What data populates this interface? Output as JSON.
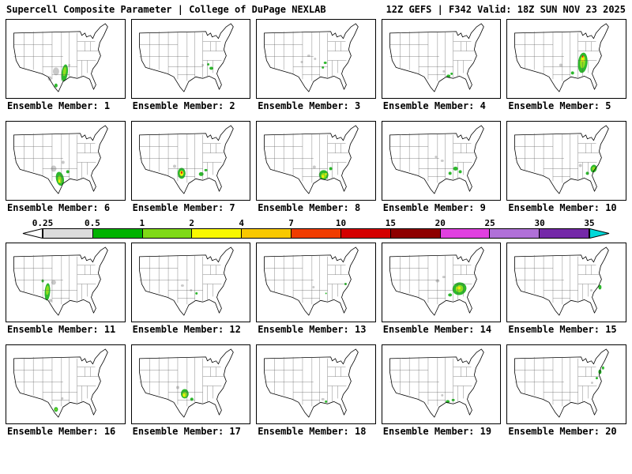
{
  "header": {
    "title_left": "Supercell Composite Parameter | College of DuPage NEXLAB",
    "title_right": "12Z GEFS | F342 Valid: 18Z SUN NOV 23 2025"
  },
  "colorbar": {
    "ticks": [
      "0.25",
      "0.5",
      "1",
      "2",
      "4",
      "7",
      "10",
      "15",
      "20",
      "25",
      "30",
      "35"
    ],
    "segment_colors": [
      "#ffffff",
      "#dcdcdc",
      "#00b300",
      "#7fd916",
      "#f8f800",
      "#f8c800",
      "#f03c00",
      "#d40000",
      "#8e0000",
      "#e040e0",
      "#b070d8",
      "#7428a8",
      "#00d8d8"
    ]
  },
  "map_colors": {
    "gray": "#c9c9c9",
    "green": "#2db82d",
    "green2": "#8ede1f",
    "yellow": "#f2ef0a",
    "red": "#e01414"
  },
  "panels": [
    {
      "label": "Ensemble Member: 1",
      "blobs": [
        [
          63,
          66,
          4,
          5,
          "gray",
          0
        ],
        [
          55,
          75,
          2.5,
          3,
          "gray",
          0
        ],
        [
          80,
          58,
          1.5,
          1.5,
          "gray",
          0
        ],
        [
          74,
          68,
          4,
          11,
          "green",
          8
        ],
        [
          74,
          66,
          2,
          6,
          "green2",
          8
        ],
        [
          63,
          84,
          2,
          2.5,
          "green",
          0
        ]
      ]
    },
    {
      "label": "Ensemble Member: 2",
      "blobs": [
        [
          90,
          58,
          1.5,
          1.5,
          "gray",
          0
        ],
        [
          101,
          62,
          2.5,
          2,
          "green",
          0
        ],
        [
          97,
          57,
          1.5,
          1.5,
          "green",
          0
        ]
      ]
    },
    {
      "label": "Ensemble Member: 3",
      "blobs": [
        [
          66,
          46,
          2,
          1.5,
          "gray",
          0
        ],
        [
          74,
          50,
          1.5,
          1.5,
          "gray",
          0
        ],
        [
          57,
          54,
          1.5,
          1.5,
          "gray",
          0
        ],
        [
          87,
          55,
          2,
          1.5,
          "green",
          0
        ],
        [
          84,
          61,
          1.5,
          1.5,
          "green",
          0
        ]
      ]
    },
    {
      "label": "Ensemble Member: 4",
      "blobs": [
        [
          78,
          66,
          1.5,
          1.5,
          "gray",
          0
        ],
        [
          84,
          72,
          2.5,
          2,
          "green",
          0
        ],
        [
          88,
          69,
          1.5,
          1.5,
          "green",
          0
        ]
      ]
    },
    {
      "label": "Ensemble Member: 5",
      "blobs": [
        [
          68,
          58,
          2,
          2,
          "gray",
          0
        ],
        [
          96,
          55,
          6,
          13,
          "green",
          6
        ],
        [
          96,
          54,
          3.5,
          8,
          "green2",
          6
        ],
        [
          96,
          50,
          2,
          4,
          "yellow",
          6
        ],
        [
          96,
          47,
          0.9,
          1.4,
          "red",
          0
        ],
        [
          83,
          68,
          2,
          2,
          "green",
          0
        ]
      ]
    },
    {
      "label": "Ensemble Member: 6",
      "blobs": [
        [
          60,
          60,
          3.5,
          4,
          "gray",
          0
        ],
        [
          72,
          52,
          2,
          2,
          "gray",
          0
        ],
        [
          68,
          73,
          5,
          9,
          "green",
          -12
        ],
        [
          68,
          74,
          2.5,
          5,
          "green2",
          -12
        ],
        [
          67,
          76,
          1.2,
          2.2,
          "yellow",
          0
        ],
        [
          78,
          64,
          2,
          2,
          "green",
          0
        ]
      ]
    },
    {
      "label": "Ensemble Member: 7",
      "blobs": [
        [
          54,
          57,
          2,
          2,
          "gray",
          0
        ],
        [
          63,
          66,
          5,
          7,
          "green",
          0
        ],
        [
          63,
          66,
          2.5,
          3.5,
          "yellow",
          0
        ],
        [
          63,
          65,
          1,
          1.6,
          "red",
          0
        ],
        [
          88,
          67,
          3,
          2.5,
          "green",
          0
        ],
        [
          94,
          62,
          2,
          1.5,
          "green",
          0
        ]
      ]
    },
    {
      "label": "Ensemble Member: 8",
      "blobs": [
        [
          73,
          58,
          2,
          2,
          "gray",
          0
        ],
        [
          85,
          68,
          6,
          6,
          "green",
          0
        ],
        [
          85,
          69,
          3.5,
          3.5,
          "green2",
          0
        ],
        [
          84,
          70,
          1.5,
          2,
          "yellow",
          0
        ],
        [
          88,
          67,
          1,
          1.5,
          "yellow",
          0
        ],
        [
          94,
          60,
          2,
          2,
          "green",
          0
        ]
      ]
    },
    {
      "label": "Ensemble Member: 9",
      "blobs": [
        [
          76,
          50,
          2,
          1.5,
          "gray",
          0
        ],
        [
          68,
          45,
          1.5,
          1.5,
          "gray",
          0
        ],
        [
          93,
          60,
          3,
          2.5,
          "green",
          0
        ],
        [
          99,
          64,
          2,
          2,
          "green",
          0
        ],
        [
          86,
          66,
          2,
          2,
          "green",
          0
        ]
      ]
    },
    {
      "label": "Ensemble Member: 10",
      "blobs": [
        [
          93,
          56,
          2,
          2,
          "gray",
          0
        ],
        [
          110,
          60,
          4,
          5,
          "green",
          18
        ],
        [
          110,
          60,
          2,
          2.5,
          "green2",
          18
        ],
        [
          102,
          66,
          2,
          2,
          "green",
          0
        ]
      ]
    },
    {
      "label": "Ensemble Member: 11",
      "blobs": [
        [
          60,
          50,
          3,
          3,
          "gray",
          0
        ],
        [
          56,
          73,
          2,
          2,
          "gray",
          0
        ],
        [
          52,
          62,
          3.5,
          11,
          "green",
          4
        ],
        [
          52,
          60,
          2,
          6,
          "green2",
          4
        ],
        [
          46,
          48,
          1.5,
          2,
          "green",
          0
        ]
      ]
    },
    {
      "label": "Ensemble Member: 12",
      "blobs": [
        [
          64,
          54,
          2,
          1.5,
          "gray",
          0
        ],
        [
          75,
          60,
          1.5,
          1.5,
          "gray",
          0
        ],
        [
          82,
          64,
          1.5,
          1.5,
          "green",
          0
        ]
      ]
    },
    {
      "label": "Ensemble Member: 13",
      "blobs": [
        [
          72,
          56,
          1.5,
          1.5,
          "gray",
          0
        ],
        [
          113,
          52,
          1.5,
          1.5,
          "green",
          0
        ],
        [
          88,
          64,
          1,
          1,
          "green",
          0
        ]
      ]
    },
    {
      "label": "Ensemble Member: 14",
      "blobs": [
        [
          70,
          48,
          2.5,
          2,
          "gray",
          0
        ],
        [
          78,
          43,
          2,
          1.5,
          "gray",
          0
        ],
        [
          98,
          58,
          9,
          8,
          "green",
          -18
        ],
        [
          98,
          58,
          5,
          4.5,
          "green2",
          -18
        ],
        [
          97,
          57,
          2.5,
          2,
          "yellow",
          0
        ],
        [
          86,
          66,
          2.5,
          2,
          "green",
          0
        ]
      ]
    },
    {
      "label": "Ensemble Member: 15",
      "blobs": [
        [
          107,
          60,
          1.5,
          1.5,
          "gray",
          0
        ],
        [
          118,
          56,
          2,
          3,
          "green",
          0
        ]
      ]
    },
    {
      "label": "Ensemble Member: 16",
      "blobs": [
        [
          71,
          68,
          1.5,
          1.5,
          "gray",
          0
        ],
        [
          63,
          82,
          2.5,
          3,
          "green",
          0
        ],
        [
          63,
          82,
          1,
          1.5,
          "green2",
          0
        ]
      ]
    },
    {
      "label": "Ensemble Member: 17",
      "blobs": [
        [
          58,
          54,
          2,
          2,
          "gray",
          0
        ],
        [
          67,
          62,
          5,
          6,
          "green",
          0
        ],
        [
          67,
          63,
          3,
          3.5,
          "green2",
          0
        ],
        [
          66,
          64,
          1.5,
          2,
          "yellow",
          0
        ],
        [
          76,
          69,
          2,
          2,
          "green",
          0
        ]
      ]
    },
    {
      "label": "Ensemble Member: 18",
      "blobs": [
        [
          84,
          69,
          2,
          1.5,
          "gray",
          0
        ],
        [
          88,
          72,
          1.5,
          1.5,
          "green",
          0
        ]
      ]
    },
    {
      "label": "Ensemble Member: 19",
      "blobs": [
        [
          76,
          64,
          1.5,
          1.5,
          "gray",
          0
        ],
        [
          83,
          72,
          2.5,
          2,
          "green",
          0
        ],
        [
          90,
          70,
          2,
          1.5,
          "green",
          0
        ]
      ]
    },
    {
      "label": "Ensemble Member: 20",
      "blobs": [
        [
          108,
          48,
          1.5,
          1.5,
          "gray",
          0
        ],
        [
          118,
          34,
          2,
          3,
          "green",
          0
        ],
        [
          122,
          29,
          1.5,
          2,
          "green",
          0
        ],
        [
          114,
          42,
          1.5,
          1.5,
          "green",
          0
        ]
      ]
    }
  ]
}
